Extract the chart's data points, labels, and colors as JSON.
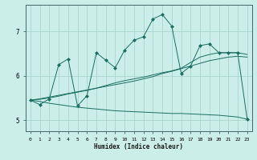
{
  "xlabel": "Humidex (Indice chaleur)",
  "xlim": [
    -0.5,
    23.5
  ],
  "ylim": [
    4.75,
    7.6
  ],
  "yticks": [
    5,
    6,
    7
  ],
  "xticks": [
    0,
    1,
    2,
    3,
    4,
    5,
    6,
    7,
    8,
    9,
    10,
    11,
    12,
    13,
    14,
    15,
    16,
    17,
    18,
    19,
    20,
    21,
    22,
    23
  ],
  "background_color": "#cceee8",
  "grid_color": "#aad4cc",
  "line_color": "#1a6e62",
  "line1_x": [
    0,
    1,
    2,
    3,
    4,
    5,
    6,
    7,
    8,
    9,
    10,
    11,
    12,
    13,
    14,
    15,
    16,
    17,
    18,
    19,
    20,
    21,
    22,
    23
  ],
  "line1_y": [
    5.45,
    5.42,
    5.38,
    5.35,
    5.32,
    5.29,
    5.27,
    5.25,
    5.23,
    5.21,
    5.2,
    5.19,
    5.18,
    5.17,
    5.16,
    5.15,
    5.15,
    5.14,
    5.13,
    5.12,
    5.11,
    5.09,
    5.07,
    5.02
  ],
  "line2_x": [
    0,
    1,
    2,
    3,
    4,
    5,
    6,
    7,
    8,
    9,
    10,
    11,
    12,
    13,
    14,
    15,
    16,
    17,
    18,
    19,
    20,
    21,
    22,
    23
  ],
  "line2_y": [
    5.45,
    5.48,
    5.52,
    5.56,
    5.6,
    5.64,
    5.68,
    5.72,
    5.76,
    5.8,
    5.84,
    5.88,
    5.93,
    5.98,
    6.05,
    6.1,
    6.16,
    6.22,
    6.28,
    6.34,
    6.38,
    6.42,
    6.44,
    6.42
  ],
  "line3_x": [
    0,
    1,
    2,
    3,
    4,
    5,
    6,
    7,
    8,
    9,
    10,
    11,
    12,
    13,
    14,
    15,
    16,
    17,
    18,
    19,
    20,
    21,
    22,
    23
  ],
  "line3_y": [
    5.45,
    5.47,
    5.5,
    5.54,
    5.59,
    5.63,
    5.67,
    5.72,
    5.78,
    5.84,
    5.89,
    5.93,
    5.97,
    6.02,
    6.07,
    6.11,
    6.17,
    6.3,
    6.42,
    6.48,
    6.52,
    6.52,
    6.52,
    6.48
  ],
  "line4_x": [
    0,
    1,
    2,
    3,
    4,
    5,
    6,
    7,
    8,
    9,
    10,
    11,
    12,
    13,
    14,
    15,
    16,
    17,
    18,
    19,
    20,
    21,
    22,
    23
  ],
  "line4_y": [
    5.45,
    5.35,
    5.48,
    6.25,
    6.38,
    5.32,
    5.55,
    6.52,
    6.35,
    6.18,
    6.58,
    6.8,
    6.88,
    7.28,
    7.38,
    7.12,
    6.05,
    6.22,
    6.68,
    6.72,
    6.52,
    6.52,
    6.52,
    5.02
  ]
}
